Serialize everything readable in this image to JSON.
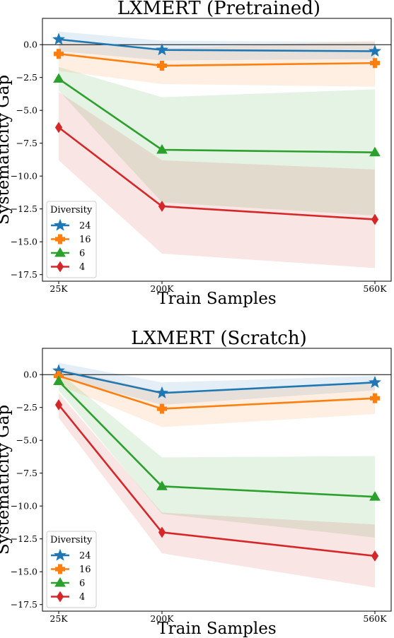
{
  "chart_data": [
    {
      "type": "line",
      "title": "LXMERT (Pretrained)",
      "xlabel": "Train Samples",
      "ylabel": "Systematicity Gap",
      "categories": [
        "25K",
        "200K",
        "560K"
      ],
      "ylim": [
        -18.0,
        2.0
      ],
      "yticks": [
        "0.0",
        "−2.5",
        "−5.0",
        "−7.5",
        "−10.0",
        "−12.5",
        "−15.0",
        "−17.5"
      ],
      "ytick_values": [
        0.0,
        -2.5,
        -5.0,
        -7.5,
        -10.0,
        -12.5,
        -15.0,
        -17.5
      ],
      "reference_line": 0,
      "grid": false,
      "legend": {
        "title": "Diversity",
        "placement": "lower-left"
      },
      "series": [
        {
          "name": "24",
          "color": "#1f77b4",
          "marker": "star",
          "values": [
            0.4,
            -0.4,
            -0.5
          ],
          "lower": [
            -0.5,
            -1.2,
            -1.1
          ],
          "upper": [
            1.0,
            0.3,
            0.2
          ]
        },
        {
          "name": "16",
          "color": "#ff7f0e",
          "marker": "plus",
          "values": [
            -0.7,
            -1.6,
            -1.4
          ],
          "lower": [
            -2.0,
            -3.0,
            -3.2
          ],
          "upper": [
            0.3,
            -0.3,
            0.3
          ]
        },
        {
          "name": "6",
          "color": "#2ca02c",
          "marker": "triangle",
          "values": [
            -2.6,
            -8.0,
            -8.2
          ],
          "lower": [
            -3.5,
            -12.0,
            -13.0
          ],
          "upper": [
            -1.7,
            -4.0,
            -3.4
          ]
        },
        {
          "name": "4",
          "color": "#d62728",
          "marker": "diamond",
          "values": [
            -6.3,
            -12.3,
            -13.3
          ],
          "lower": [
            -8.8,
            -15.9,
            -17.0
          ],
          "upper": [
            -3.6,
            -8.8,
            -9.5
          ]
        }
      ]
    },
    {
      "type": "line",
      "title": "LXMERT (Scratch)",
      "xlabel": "Train Samples",
      "ylabel": "Systematicity Gap",
      "categories": [
        "25K",
        "200K",
        "560K"
      ],
      "ylim": [
        -18.0,
        2.0
      ],
      "yticks": [
        "0.0",
        "−2.5",
        "−5.0",
        "−7.5",
        "−10.0",
        "−12.5",
        "−15.0",
        "−17.5"
      ],
      "ytick_values": [
        0.0,
        -2.5,
        -5.0,
        -7.5,
        -10.0,
        -12.5,
        -15.0,
        -17.5
      ],
      "reference_line": 0,
      "grid": false,
      "legend": {
        "title": "Diversity",
        "placement": "lower-left"
      },
      "series": [
        {
          "name": "24",
          "color": "#1f77b4",
          "marker": "star",
          "values": [
            0.3,
            -1.4,
            -0.6
          ],
          "lower": [
            -0.2,
            -2.3,
            -1.2
          ],
          "upper": [
            0.9,
            -0.6,
            -0.1
          ]
        },
        {
          "name": "16",
          "color": "#ff7f0e",
          "marker": "plus",
          "values": [
            -0.1,
            -2.6,
            -1.8
          ],
          "lower": [
            -0.8,
            -4.0,
            -3.0
          ],
          "upper": [
            0.5,
            -1.3,
            -0.7
          ]
        },
        {
          "name": "6",
          "color": "#2ca02c",
          "marker": "triangle",
          "values": [
            -0.5,
            -8.5,
            -9.3
          ],
          "lower": [
            -1.2,
            -10.6,
            -12.4
          ],
          "upper": [
            0.2,
            -6.3,
            -6.2
          ]
        },
        {
          "name": "4",
          "color": "#d62728",
          "marker": "diamond",
          "values": [
            -2.3,
            -12.0,
            -13.8
          ],
          "lower": [
            -3.3,
            -13.6,
            -16.2
          ],
          "upper": [
            -1.4,
            -10.5,
            -11.4
          ]
        }
      ]
    }
  ]
}
